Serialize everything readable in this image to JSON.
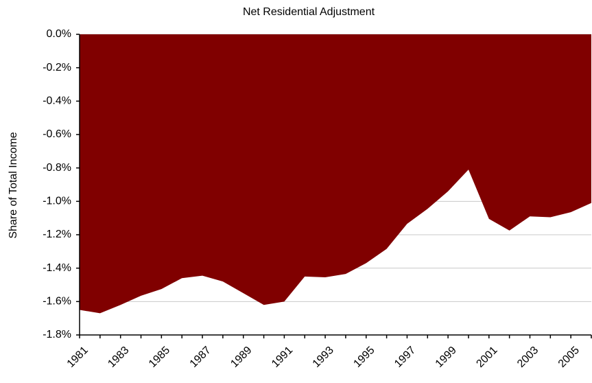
{
  "chart_data": {
    "type": "area",
    "title": "Net Residential Adjustment",
    "y_label": "Share of Total Income",
    "categories": [
      "1981",
      null,
      "1983",
      null,
      "1985",
      null,
      "1987",
      null,
      "1989",
      null,
      "1991",
      null,
      "1993",
      null,
      "1995",
      null,
      "1997",
      null,
      "1999",
      null,
      "2001",
      null,
      "2003",
      null,
      "2005",
      null
    ],
    "values": [
      -1.65,
      -1.67,
      -1.62,
      -1.565,
      -1.525,
      -1.46,
      -1.445,
      -1.48,
      -1.55,
      -1.62,
      -1.6,
      -1.45,
      -1.455,
      -1.435,
      -1.37,
      -1.285,
      -1.135,
      -1.045,
      -0.94,
      -0.81,
      -1.105,
      -1.175,
      -1.09,
      -1.095,
      -1.065,
      -1.01
    ],
    "color": "#800000",
    "ylim": [
      -1.8,
      0
    ],
    "yticks": [
      {
        "value": 0,
        "label": "0.0%"
      },
      {
        "value": -0.2,
        "label": "-0.2%"
      },
      {
        "value": -0.4,
        "label": "-0.4%"
      },
      {
        "value": -0.6,
        "label": "-0.6%"
      },
      {
        "value": -0.8,
        "label": "-0.8%"
      },
      {
        "value": -1.0,
        "label": "-1.0%"
      },
      {
        "value": -1.2,
        "label": "-1.2%"
      },
      {
        "value": -1.4,
        "label": "-1.4%"
      },
      {
        "value": -1.6,
        "label": "-1.6%"
      },
      {
        "value": -1.8,
        "label": "-1.8%"
      }
    ],
    "grid": true
  }
}
